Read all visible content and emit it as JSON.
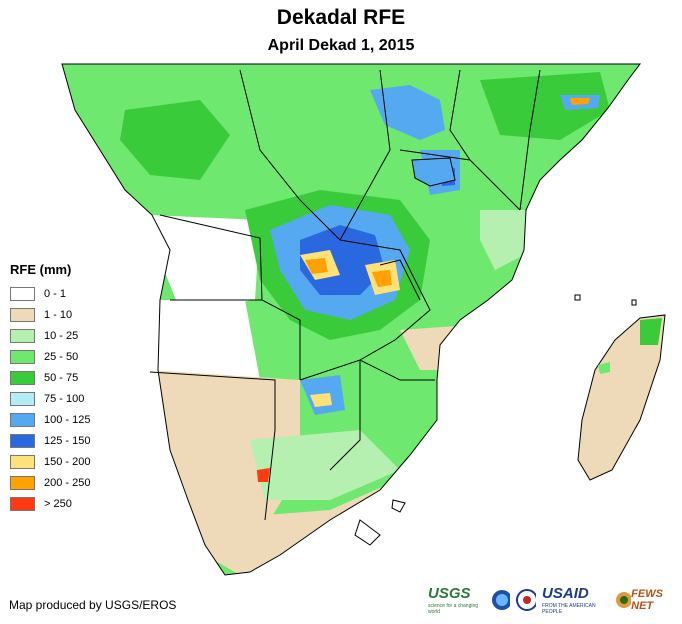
{
  "title": "Dekadal RFE",
  "subtitle": "April Dekad 1, 2015",
  "legend": {
    "title": "RFE (mm)",
    "items": [
      {
        "label": "0 - 1",
        "color": "#ffffff"
      },
      {
        "label": "1 - 10",
        "color": "#eed9b9"
      },
      {
        "label": "10 - 25",
        "color": "#b5f0b0"
      },
      {
        "label": "25 - 50",
        "color": "#6ee86e"
      },
      {
        "label": "50 - 75",
        "color": "#3acb3a"
      },
      {
        "label": "75 - 100",
        "color": "#b4ecf5"
      },
      {
        "label": "100 - 125",
        "color": "#55a9f0"
      },
      {
        "label": "125 - 150",
        "color": "#2a68e0"
      },
      {
        "label": "150 - 200",
        "color": "#ffe17a"
      },
      {
        "label": "200 - 250",
        "color": "#ffa200"
      },
      {
        "label": "> 250",
        "color": "#ff3a0e"
      }
    ]
  },
  "credit": "Map produced by USGS/EROS",
  "logos": {
    "usgs": "USGS",
    "usgs_tagline": "science for a changing world",
    "usaid": "USAID",
    "usaid_tagline": "FROM THE AMERICAN PEOPLE",
    "fewsnet": "FEWS NET",
    "icons": [
      "noaa-icon",
      "usaid-seal-icon",
      "fewsnet-icon"
    ]
  }
}
